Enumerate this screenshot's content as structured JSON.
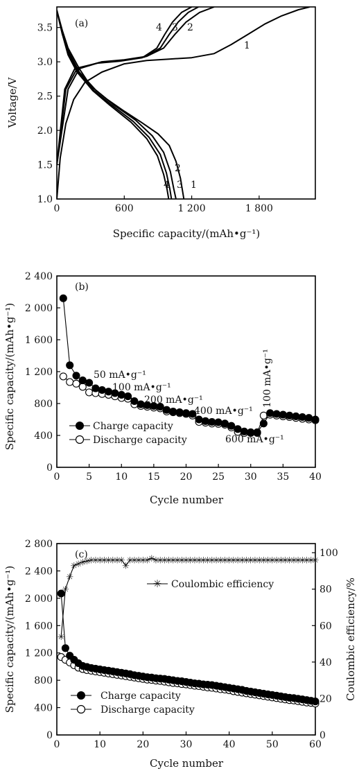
{
  "chart_data": [
    {
      "panel": "(a)",
      "type": "line",
      "xlabel": "Specific capacity/(mAh•g⁻¹)",
      "ylabel": "Voltage/V",
      "xlim": [
        0,
        2300
      ],
      "ylim": [
        1.0,
        3.8
      ],
      "xticks": [
        0,
        600,
        1200,
        1800
      ],
      "xtick_labels": [
        "0",
        "600",
        "1 200",
        "1 800"
      ],
      "yticks": [
        1.0,
        1.5,
        2.0,
        2.5,
        3.0,
        3.5
      ],
      "ytick_labels": [
        "1.0",
        "1.5",
        "2.0",
        "2.5",
        "3.0",
        "3.5"
      ],
      "grid": false,
      "curve_labels": [
        "1",
        "2",
        "3",
        "4",
        "1",
        "2",
        "3",
        "4"
      ],
      "series": [
        {
          "name": "1",
          "role": "charge",
          "points": [
            [
              0,
              1.0
            ],
            [
              30,
              1.6
            ],
            [
              80,
              2.1
            ],
            [
              150,
              2.45
            ],
            [
              250,
              2.7
            ],
            [
              400,
              2.85
            ],
            [
              600,
              2.97
            ],
            [
              800,
              3.02
            ],
            [
              1000,
              3.04
            ],
            [
              1200,
              3.06
            ],
            [
              1400,
              3.12
            ],
            [
              1550,
              3.25
            ],
            [
              1700,
              3.4
            ],
            [
              1850,
              3.55
            ],
            [
              2000,
              3.67
            ],
            [
              2150,
              3.76
            ],
            [
              2250,
              3.8
            ]
          ]
        },
        {
          "name": "1",
          "role": "discharge",
          "points": [
            [
              0,
              3.75
            ],
            [
              50,
              3.45
            ],
            [
              100,
              3.2
            ],
            [
              200,
              2.9
            ],
            [
              300,
              2.65
            ],
            [
              450,
              2.45
            ],
            [
              600,
              2.28
            ],
            [
              750,
              2.12
            ],
            [
              900,
              1.95
            ],
            [
              1000,
              1.78
            ],
            [
              1060,
              1.55
            ],
            [
              1100,
              1.3
            ],
            [
              1130,
              1.0
            ]
          ]
        },
        {
          "name": "2",
          "role": "charge",
          "points": [
            [
              0,
              1.5
            ],
            [
              100,
              2.6
            ],
            [
              200,
              2.9
            ],
            [
              400,
              3.0
            ],
            [
              600,
              3.03
            ],
            [
              800,
              3.08
            ],
            [
              950,
              3.2
            ],
            [
              1050,
              3.4
            ],
            [
              1150,
              3.58
            ],
            [
              1270,
              3.72
            ],
            [
              1400,
              3.8
            ]
          ]
        },
        {
          "name": "2",
          "role": "discharge",
          "points": [
            [
              0,
              3.75
            ],
            [
              50,
              3.4
            ],
            [
              120,
              3.1
            ],
            [
              200,
              2.85
            ],
            [
              350,
              2.58
            ],
            [
              500,
              2.38
            ],
            [
              700,
              2.15
            ],
            [
              850,
              1.92
            ],
            [
              950,
              1.68
            ],
            [
              1010,
              1.4
            ],
            [
              1040,
              1.15
            ],
            [
              1060,
              1.0
            ]
          ]
        },
        {
          "name": "3",
          "role": "charge",
          "points": [
            [
              0,
              1.5
            ],
            [
              80,
              2.6
            ],
            [
              180,
              2.9
            ],
            [
              380,
              2.99
            ],
            [
              580,
              3.02
            ],
            [
              780,
              3.07
            ],
            [
              920,
              3.2
            ],
            [
              1000,
              3.4
            ],
            [
              1080,
              3.58
            ],
            [
              1170,
              3.72
            ],
            [
              1260,
              3.8
            ]
          ]
        },
        {
          "name": "3",
          "role": "discharge",
          "points": [
            [
              0,
              3.75
            ],
            [
              50,
              3.4
            ],
            [
              110,
              3.1
            ],
            [
              190,
              2.85
            ],
            [
              330,
              2.58
            ],
            [
              480,
              2.38
            ],
            [
              680,
              2.13
            ],
            [
              820,
              1.9
            ],
            [
              920,
              1.65
            ],
            [
              975,
              1.38
            ],
            [
              1005,
              1.15
            ],
            [
              1020,
              1.0
            ]
          ]
        },
        {
          "name": "4",
          "role": "charge",
          "points": [
            [
              0,
              1.5
            ],
            [
              70,
              2.6
            ],
            [
              160,
              2.9
            ],
            [
              360,
              2.98
            ],
            [
              560,
              3.01
            ],
            [
              760,
              3.06
            ],
            [
              890,
              3.2
            ],
            [
              960,
              3.4
            ],
            [
              1030,
              3.58
            ],
            [
              1110,
              3.72
            ],
            [
              1200,
              3.8
            ]
          ]
        },
        {
          "name": "4",
          "role": "discharge",
          "points": [
            [
              0,
              3.75
            ],
            [
              50,
              3.4
            ],
            [
              100,
              3.1
            ],
            [
              180,
              2.85
            ],
            [
              320,
              2.58
            ],
            [
              470,
              2.37
            ],
            [
              660,
              2.12
            ],
            [
              800,
              1.88
            ],
            [
              895,
              1.63
            ],
            [
              950,
              1.36
            ],
            [
              980,
              1.15
            ],
            [
              995,
              1.0
            ]
          ]
        }
      ]
    },
    {
      "panel": "(b)",
      "type": "scatter",
      "xlabel": "Cycle number",
      "ylabel": "Specific capacity/(mAh•g⁻¹)",
      "xlim": [
        0,
        40
      ],
      "ylim": [
        0,
        2400
      ],
      "xticks": [
        0,
        5,
        10,
        15,
        20,
        25,
        30,
        35,
        40
      ],
      "xtick_labels": [
        "0",
        "5",
        "10",
        "15",
        "20",
        "25",
        "30",
        "35",
        "40"
      ],
      "yticks": [
        0,
        400,
        800,
        1200,
        1600,
        2000,
        2400
      ],
      "ytick_labels": [
        "0",
        "400",
        "800",
        "1 200",
        "1 600",
        "2 000",
        "2 400"
      ],
      "grid": false,
      "legend": [
        "Charge capacity",
        "Discharge capacity"
      ],
      "legend_placement": "bottom-left",
      "rate_labels": [
        "50 mA•g⁻¹",
        "100 mA•g⁻¹",
        "200 mA•g⁻¹",
        "400 mA•g⁻¹",
        "600 mA•g⁻¹",
        "100 mA•g⁻¹"
      ],
      "x": [
        1,
        2,
        3,
        4,
        5,
        6,
        7,
        8,
        9,
        10,
        11,
        12,
        13,
        14,
        15,
        16,
        17,
        18,
        19,
        20,
        21,
        22,
        23,
        24,
        25,
        26,
        27,
        28,
        29,
        30,
        31,
        32,
        33,
        34,
        35,
        36,
        37,
        38,
        39,
        40
      ],
      "series": [
        {
          "name": "Charge capacity",
          "marker": "filled-circle",
          "values": [
            2120,
            1280,
            1150,
            1090,
            1060,
            990,
            970,
            950,
            930,
            910,
            890,
            830,
            790,
            780,
            770,
            760,
            720,
            700,
            690,
            680,
            670,
            600,
            580,
            570,
            565,
            550,
            520,
            480,
            450,
            440,
            440,
            550,
            680,
            670,
            660,
            650,
            640,
            630,
            620,
            600
          ]
        },
        {
          "name": "Discharge capacity",
          "marker": "open-circle",
          "values": [
            1140,
            1070,
            1050,
            1010,
            940,
            930,
            920,
            910,
            890,
            870,
            860,
            790,
            770,
            760,
            750,
            740,
            700,
            690,
            680,
            670,
            650,
            570,
            560,
            550,
            545,
            535,
            500,
            445,
            430,
            430,
            430,
            650,
            660,
            650,
            640,
            630,
            620,
            610,
            600,
            590
          ]
        }
      ]
    },
    {
      "panel": "(c)",
      "type": "scatter",
      "xlabel": "Cycle number",
      "ylabel": "Specific capacity/(mAh•g⁻¹)",
      "ylabel_right": "Coulombic efficiency/%",
      "xlim": [
        0,
        60
      ],
      "ylim": [
        0,
        2800
      ],
      "ylim_right": [
        0,
        105
      ],
      "xticks": [
        0,
        10,
        20,
        30,
        40,
        50,
        60
      ],
      "xtick_labels": [
        "0",
        "10",
        "20",
        "30",
        "40",
        "50",
        "60"
      ],
      "yticks": [
        0,
        400,
        800,
        1200,
        1600,
        2000,
        2400,
        2800
      ],
      "ytick_labels": [
        "0",
        "400",
        "800",
        "1 200",
        "1 600",
        "2 000",
        "2 400",
        "2 800"
      ],
      "yticks_right": [
        0,
        20,
        40,
        60,
        80,
        100
      ],
      "ytick_labels_right": [
        "0",
        "20",
        "40",
        "60",
        "80",
        "100"
      ],
      "grid": false,
      "legend": [
        "Coulombic efficiency",
        "Charge capacity",
        "Discharge capacity"
      ],
      "x": [
        1,
        2,
        3,
        4,
        5,
        6,
        7,
        8,
        9,
        10,
        11,
        12,
        13,
        14,
        15,
        16,
        17,
        18,
        19,
        20,
        21,
        22,
        23,
        24,
        25,
        26,
        27,
        28,
        29,
        30,
        31,
        32,
        33,
        34,
        35,
        36,
        37,
        38,
        39,
        40,
        41,
        42,
        43,
        44,
        45,
        46,
        47,
        48,
        49,
        50,
        51,
        52,
        53,
        54,
        55,
        56,
        57,
        58,
        59,
        60
      ],
      "series": [
        {
          "name": "Charge capacity",
          "axis": "left",
          "marker": "filled-circle",
          "values": [
            2070,
            1270,
            1160,
            1100,
            1050,
            1010,
            995,
            980,
            970,
            960,
            950,
            940,
            930,
            920,
            910,
            900,
            890,
            875,
            865,
            855,
            845,
            840,
            830,
            825,
            820,
            810,
            800,
            790,
            785,
            775,
            765,
            755,
            750,
            740,
            735,
            730,
            720,
            710,
            700,
            690,
            680,
            670,
            660,
            645,
            635,
            625,
            615,
            605,
            595,
            585,
            575,
            565,
            555,
            545,
            540,
            530,
            520,
            510,
            500,
            490
          ]
        },
        {
          "name": "Discharge capacity",
          "axis": "left",
          "marker": "open-circle",
          "values": [
            1140,
            1100,
            1060,
            1020,
            985,
            965,
            950,
            940,
            930,
            920,
            910,
            900,
            890,
            880,
            870,
            860,
            850,
            840,
            830,
            820,
            810,
            805,
            795,
            790,
            780,
            770,
            760,
            755,
            745,
            740,
            730,
            720,
            715,
            705,
            695,
            690,
            680,
            670,
            665,
            655,
            640,
            630,
            620,
            610,
            600,
            590,
            580,
            570,
            560,
            550,
            540,
            530,
            520,
            510,
            505,
            495,
            485,
            475,
            470,
            460
          ]
        },
        {
          "name": "Coulombic efficiency",
          "axis": "right",
          "marker": "asterisk",
          "values": [
            54,
            80,
            87,
            93,
            94,
            95,
            95.5,
            96,
            96,
            96,
            96,
            96,
            96,
            96,
            96,
            93,
            96,
            96,
            96,
            96,
            96,
            97,
            96,
            96,
            96,
            96,
            96,
            96,
            96,
            96,
            96,
            96,
            96,
            96,
            96,
            96,
            96,
            96,
            96,
            96,
            96,
            96,
            96,
            96,
            96,
            96,
            96,
            96,
            96,
            96,
            96,
            96,
            96,
            96,
            96,
            96,
            96,
            96,
            96,
            96
          ]
        }
      ]
    }
  ]
}
